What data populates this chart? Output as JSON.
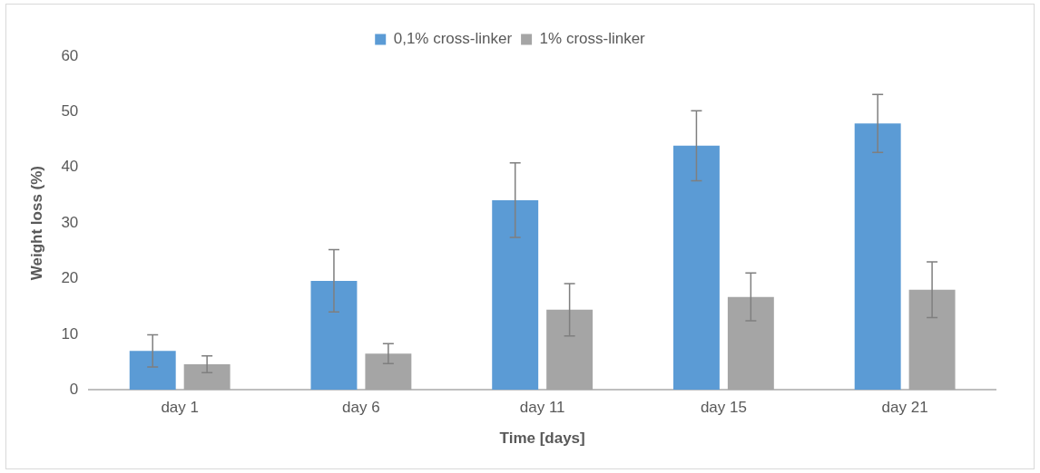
{
  "chart_data": {
    "type": "bar",
    "xlabel": "Time [days]",
    "ylabel": "Weight loss (%)",
    "categories": [
      "day 1",
      "day 6",
      "day 11",
      "day 15",
      "day 21"
    ],
    "series": [
      {
        "name": "0,1% cross-linker",
        "color": "#5b9bd5",
        "values": [
          7.0,
          19.6,
          34.1,
          43.9,
          47.9
        ],
        "errors": [
          2.9,
          5.6,
          6.7,
          6.3,
          5.2
        ]
      },
      {
        "name": "1% cross-linker",
        "color": "#a5a5a5",
        "values": [
          4.6,
          6.5,
          14.4,
          16.7,
          18.0
        ],
        "errors": [
          1.5,
          1.8,
          4.7,
          4.3,
          5.0
        ]
      }
    ],
    "ylim": [
      0,
      60
    ],
    "yticks": [
      0,
      10,
      20,
      30,
      40,
      50,
      60
    ],
    "grid": false,
    "legend": "top"
  }
}
